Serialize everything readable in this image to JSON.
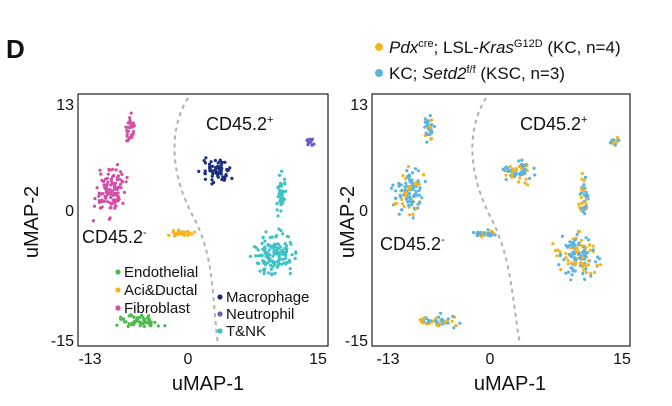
{
  "panel_label": "D",
  "top_legend": [
    {
      "color": "#f5b41a",
      "italic": "Pdx",
      "sup1": "cre",
      "mid": "; LSL-",
      "italic2": "Kras",
      "sup2": "G12D",
      "tail": " (KC, n=4)"
    },
    {
      "color": "#5ab4e0",
      "pre": "KC; ",
      "italic": "Setd2",
      "sup1": "f/f",
      "tail": " (KSC, n=3)"
    }
  ],
  "chart_data": [
    {
      "type": "scatter",
      "title": "",
      "xlabel": "uMAP-1",
      "ylabel": "uMAP-2",
      "xlim": [
        -16,
        16
      ],
      "ylim": [
        -16,
        15
      ],
      "xticks": [
        -13,
        0,
        15
      ],
      "yticks": [
        13,
        0,
        -15
      ],
      "annotations": [
        {
          "text": "CD45.2",
          "sup": "+"
        },
        {
          "text": "CD45.2",
          "sup": "-"
        }
      ],
      "cell_types": [
        {
          "name": "Endothelial",
          "color": "#4dbb4d"
        },
        {
          "name": "Aci&Ductal",
          "color": "#f5b41a"
        },
        {
          "name": "Fibroblast",
          "color": "#d24ea8"
        },
        {
          "name": "Macrophage",
          "color": "#1b2f80"
        },
        {
          "name": "Neutrophil",
          "color": "#6a5cc8"
        },
        {
          "name": "T&NK",
          "color": "#3ec2c8"
        }
      ],
      "clusters": [
        {
          "label": "Fibroblast",
          "color": "#d24ea8",
          "cx": -10.5,
          "cy": 2.5,
          "rx": 2.5,
          "ry": 4.0
        },
        {
          "label": "Fibroblast",
          "color": "#d24ea8",
          "cx": -8.0,
          "cy": 10.0,
          "rx": 0.8,
          "ry": 2.5
        },
        {
          "label": "Macrophage",
          "color": "#1b2f80",
          "cx": 2.5,
          "cy": 5.0,
          "rx": 2.5,
          "ry": 2.0
        },
        {
          "label": "Neutrophil",
          "color": "#6a5cc8",
          "cx": 14.0,
          "cy": 8.5,
          "rx": 0.8,
          "ry": 0.8
        },
        {
          "label": "T&NK",
          "color": "#3ec2c8",
          "cx": 9.5,
          "cy": -5.0,
          "rx": 3.5,
          "ry": 3.5
        },
        {
          "label": "T&NK",
          "color": "#3ec2c8",
          "cx": 10.5,
          "cy": 2.0,
          "rx": 0.8,
          "ry": 3.5
        },
        {
          "label": "Aci&Ductal",
          "color": "#f5b41a",
          "cx": -1.5,
          "cy": -2.5,
          "rx": 2.5,
          "ry": 0.7
        },
        {
          "label": "Endothelial",
          "color": "#4dbb4d",
          "cx": -7.0,
          "cy": -13.0,
          "rx": 3.5,
          "ry": 1.2
        }
      ]
    },
    {
      "type": "scatter",
      "title": "",
      "xlabel": "uMAP-1",
      "ylabel": "uMAP-2",
      "xlim": [
        -16,
        16
      ],
      "ylim": [
        -16,
        15
      ],
      "xticks": [
        -13,
        0,
        15
      ],
      "yticks": [
        13,
        0,
        -15
      ],
      "annotations": [
        {
          "text": "CD45.2",
          "sup": "+"
        },
        {
          "text": "CD45.2",
          "sup": "-"
        }
      ],
      "series": [
        {
          "name": "KC",
          "color": "#f5b41a"
        },
        {
          "name": "KSC",
          "color": "#5ab4e0"
        }
      ]
    }
  ]
}
